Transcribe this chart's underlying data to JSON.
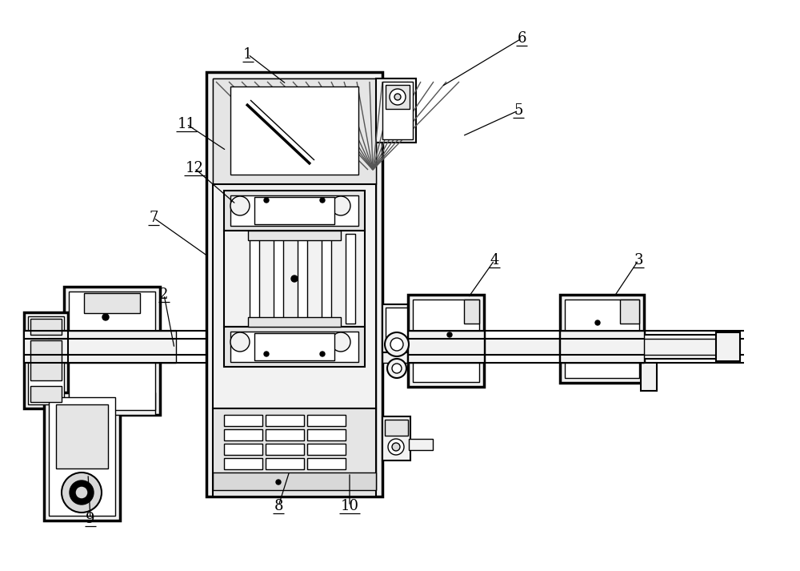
{
  "bg_color": "#ffffff",
  "lc": "#000000",
  "fc_white": "#ffffff",
  "fc_light": "#f5f5f5",
  "fc_gray": "#e8e8e8",
  "figsize": [
    10.0,
    7.13
  ],
  "dpi": 100,
  "annotations": [
    [
      "1",
      310,
      68,
      358,
      105
    ],
    [
      "11",
      233,
      155,
      283,
      188
    ],
    [
      "12",
      243,
      210,
      295,
      255
    ],
    [
      "7",
      192,
      272,
      260,
      320
    ],
    [
      "2",
      205,
      368,
      218,
      435
    ],
    [
      "9",
      113,
      648,
      110,
      592
    ],
    [
      "8",
      348,
      632,
      362,
      588
    ],
    [
      "10",
      437,
      632,
      437,
      590
    ],
    [
      "4",
      618,
      325,
      585,
      372
    ],
    [
      "3",
      798,
      325,
      768,
      370
    ],
    [
      "5",
      648,
      138,
      578,
      170
    ],
    [
      "6",
      652,
      48,
      552,
      108
    ]
  ]
}
